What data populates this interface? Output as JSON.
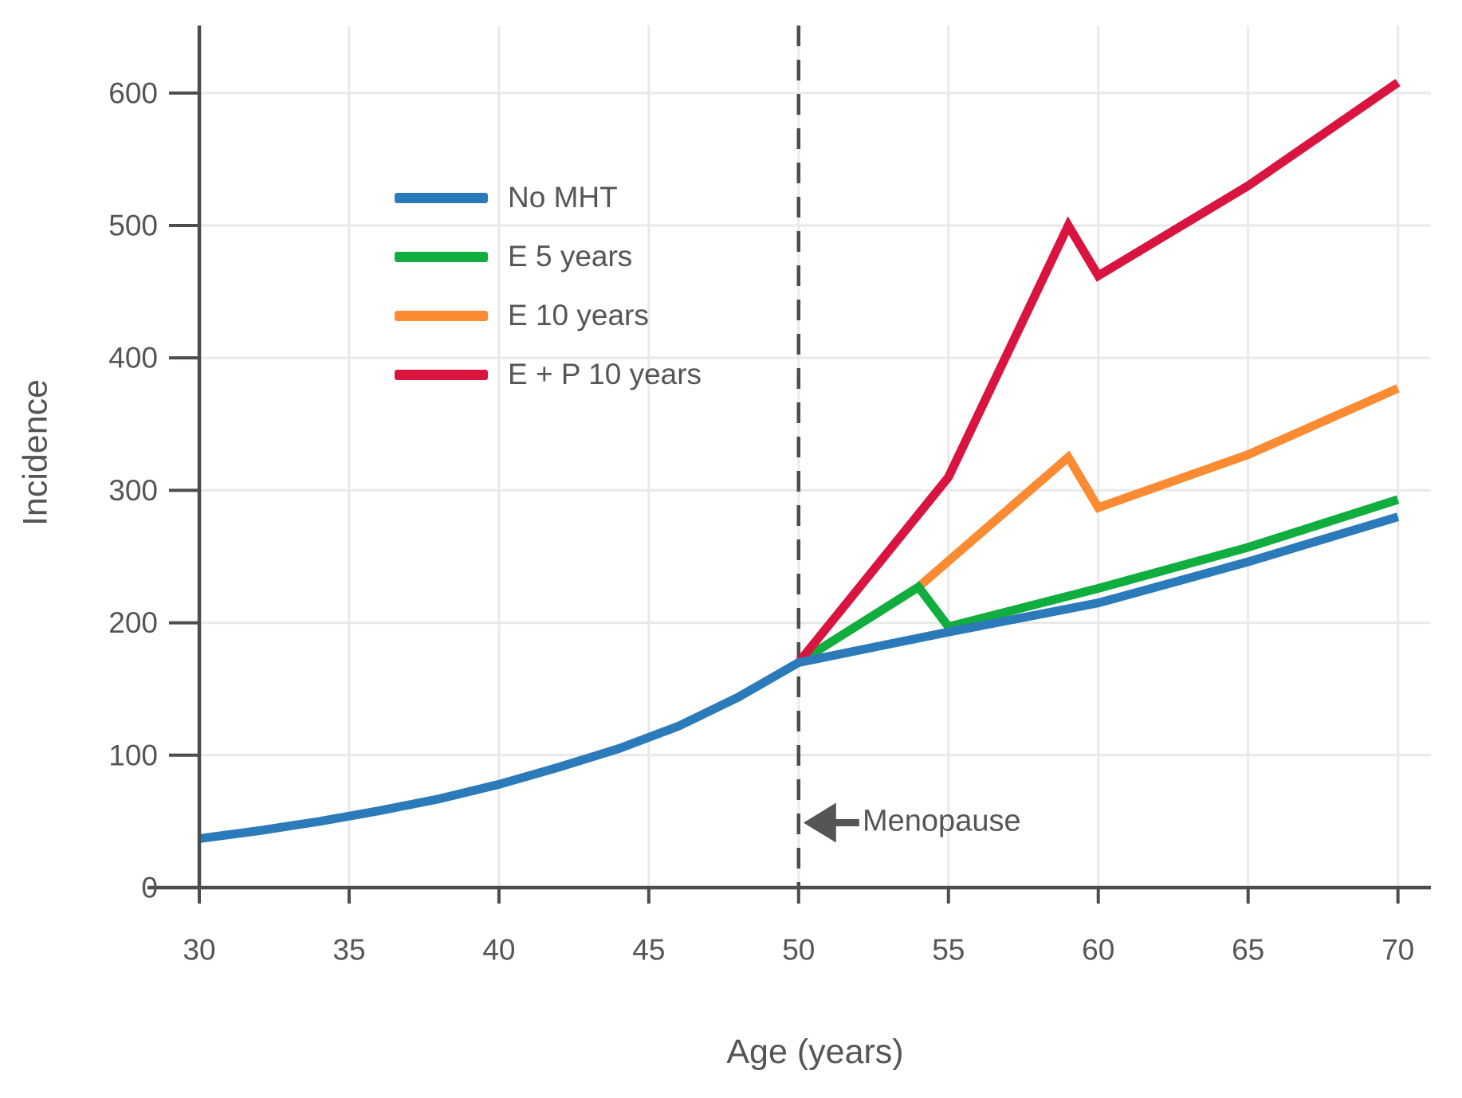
{
  "chart_data": {
    "type": "line",
    "title": "",
    "xlabel": "Age (years)",
    "ylabel": "Incidence",
    "x_ticks": [
      30,
      35,
      40,
      45,
      50,
      55,
      60,
      65,
      70
    ],
    "y_ticks": [
      0,
      100,
      200,
      300,
      400,
      500,
      600
    ],
    "xlim": [
      30,
      71.1
    ],
    "ylim": [
      0,
      651
    ],
    "grid": true,
    "legend_position": "upper-left-inside",
    "series": [
      {
        "name": "No MHT",
        "color": "#2b7bba",
        "points": [
          [
            30,
            37
          ],
          [
            32,
            43
          ],
          [
            34,
            50
          ],
          [
            36,
            58
          ],
          [
            38,
            67
          ],
          [
            40,
            78
          ],
          [
            42,
            91
          ],
          [
            44,
            105
          ],
          [
            46,
            122
          ],
          [
            48,
            144
          ],
          [
            50,
            170
          ],
          [
            55,
            193
          ],
          [
            60,
            215
          ],
          [
            65,
            246
          ],
          [
            70,
            280
          ]
        ]
      },
      {
        "name": "E 5 years",
        "color": "#10ad3f",
        "points": [
          [
            50,
            170
          ],
          [
            54,
            227
          ],
          [
            55,
            197
          ],
          [
            60,
            226
          ],
          [
            65,
            257
          ],
          [
            70,
            293
          ]
        ]
      },
      {
        "name": "E 10 years",
        "color": "#fb8b33",
        "points": [
          [
            50,
            170
          ],
          [
            54,
            227
          ],
          [
            59,
            325
          ],
          [
            60,
            287
          ],
          [
            65,
            327
          ],
          [
            70,
            377
          ]
        ]
      },
      {
        "name": "E + P 10 years",
        "color": "#d8143f",
        "points": [
          [
            50,
            170
          ],
          [
            55,
            310
          ],
          [
            59,
            500
          ],
          [
            60,
            462
          ],
          [
            65,
            530
          ],
          [
            70,
            608
          ]
        ]
      }
    ],
    "draw_order": [
      2,
      1,
      3,
      0
    ],
    "annotations": {
      "menopause_line": {
        "x": 50,
        "style": "dashed"
      },
      "menopause": {
        "text": "Menopause",
        "x": 50,
        "y": 49,
        "arrow_direction": "left"
      }
    },
    "style": {
      "axis_color": "#4d4d4d",
      "grid_color": "#e9e9e9",
      "text_color": "#555555",
      "line_width": 11,
      "dash_pattern": "26 17"
    }
  }
}
